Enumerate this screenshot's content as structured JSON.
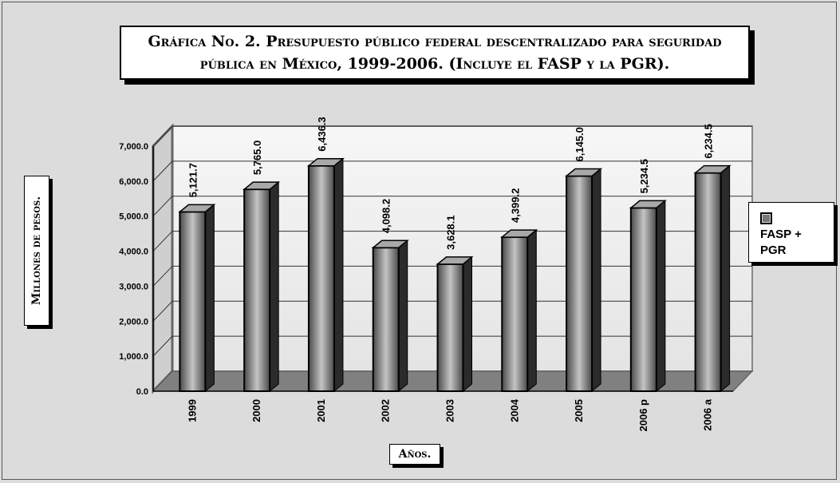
{
  "chart_data": {
    "type": "bar",
    "title": "Gráfica No. 2. Presupuesto público federal descentralizado para seguridad pública en México, 1999-2006. (Incluye el FASP y  la PGR).",
    "xlabel": "Años.",
    "ylabel": "Millones de pesos.",
    "categories": [
      "1999",
      "2000",
      "2001",
      "2002",
      "2003",
      "2004",
      "2005",
      "2006 p",
      "2006 a"
    ],
    "series": [
      {
        "name": "FASP + PGR",
        "values": [
          5121.7,
          5765.0,
          6436.3,
          4098.2,
          3628.1,
          4399.2,
          6145.0,
          5234.5,
          6234.5
        ],
        "labels": [
          "5,121.7",
          "5,765.0",
          "6,436.3",
          "4,098.2",
          "3,628.1",
          "4,399.2",
          "6,145.0",
          "5,234.5",
          "6,234.5"
        ]
      }
    ],
    "ylim": [
      0,
      7000
    ],
    "yticks": [
      0,
      1000,
      2000,
      3000,
      4000,
      5000,
      6000,
      7000
    ],
    "ytick_labels": [
      "0.0",
      "1,000.0",
      "2,000.0",
      "3,000.0",
      "4,000.0",
      "5,000.0",
      "6,000.0",
      "7,000.0"
    ],
    "grid": true,
    "legend_position": "right",
    "colors": {
      "bar": "#808080",
      "floor": "#808080",
      "wall": "#f2f2f2"
    }
  },
  "legend": {
    "label": "FASP + PGR"
  }
}
